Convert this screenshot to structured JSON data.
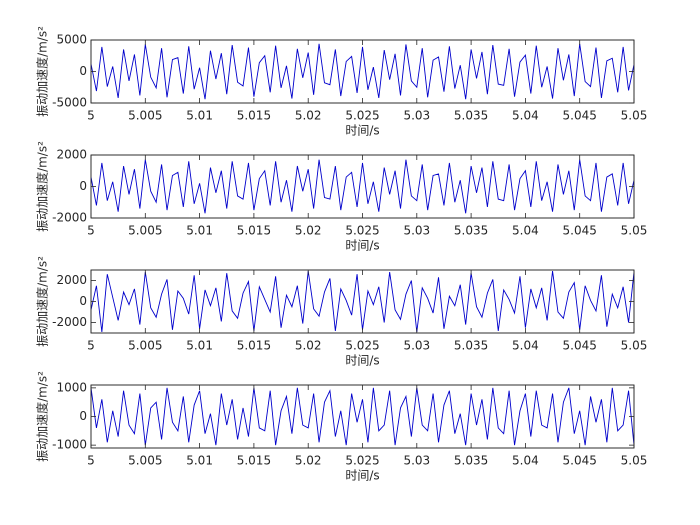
{
  "chart_data": [
    {
      "type": "line",
      "ylabel": "振动加速度/m/s²",
      "xlabel": "时间/s",
      "color": "#0000cc",
      "xlim": [
        5,
        5.05
      ],
      "xticks": [
        5,
        5.005,
        5.01,
        5.015,
        5.02,
        5.025,
        5.03,
        5.035,
        5.04,
        5.045,
        5.05
      ],
      "ylim": [
        -5000,
        5000
      ],
      "yticks": [
        -5000,
        0,
        5000
      ],
      "x": [
        5,
        5.0005,
        5.001,
        5.0015,
        5.002,
        5.0025,
        5.003,
        5.0035,
        5.004,
        5.0045,
        5.005,
        5.0055,
        5.006,
        5.0065,
        5.007,
        5.0075,
        5.008,
        5.0085,
        5.009,
        5.0095,
        5.01,
        5.0105,
        5.011,
        5.0115,
        5.012,
        5.0125,
        5.013,
        5.0135,
        5.014,
        5.0145,
        5.015,
        5.0155,
        5.016,
        5.0165,
        5.017,
        5.0175,
        5.018,
        5.0185,
        5.019,
        5.0195,
        5.02,
        5.0205,
        5.021,
        5.0215,
        5.022,
        5.0225,
        5.023,
        5.0235,
        5.024,
        5.0245,
        5.025,
        5.0255,
        5.026,
        5.0265,
        5.027,
        5.0275,
        5.028,
        5.0285,
        5.029,
        5.0295,
        5.03,
        5.0305,
        5.031,
        5.0315,
        5.032,
        5.0325,
        5.033,
        5.0335,
        5.034,
        5.0345,
        5.035,
        5.0355,
        5.036,
        5.0365,
        5.037,
        5.0375,
        5.038,
        5.0385,
        5.039,
        5.0395,
        5.04,
        5.0405,
        5.041,
        5.0415,
        5.042,
        5.0425,
        5.043,
        5.0435,
        5.044,
        5.0445,
        5.045,
        5.0455,
        5.046,
        5.0465,
        5.047,
        5.0475,
        5.048,
        5.0485,
        5.049,
        5.0495,
        5.05
      ],
      "values": [
        1200,
        -3100,
        3900,
        -2400,
        800,
        -4200,
        3500,
        -1500,
        2700,
        -3800,
        4300,
        -900,
        -2600,
        3700,
        -4100,
        1900,
        2200,
        -3500,
        4000,
        -2800,
        600,
        -4400,
        3300,
        -1200,
        2900,
        -3600,
        4200,
        -1700,
        -2300,
        3800,
        -4000,
        1400,
        2500,
        -3300,
        4100,
        -2600,
        900,
        -4300,
        3600,
        -1000,
        3000,
        -3700,
        4400,
        -1800,
        -2100,
        3500,
        -3900,
        1600,
        2400,
        -3400,
        3900,
        -2900,
        700,
        -4200,
        3400,
        -1300,
        2800,
        -3800,
        4300,
        -1500,
        -2500,
        3700,
        -4100,
        1800,
        2300,
        -3200,
        4000,
        -2700,
        1000,
        -4400,
        3500,
        -1100,
        3100,
        -3600,
        4200,
        -2000,
        -2200,
        3600,
        -4000,
        1500,
        2600,
        -3500,
        4100,
        -2500,
        800,
        -4300,
        3700,
        -1400,
        2700,
        -3900,
        4400,
        -1600,
        -2400,
        3800,
        -4200,
        1700,
        2100,
        -3300,
        3900,
        -3000,
        1100
      ]
    },
    {
      "type": "line",
      "ylabel": "振动加速度/m/s²",
      "xlabel": "时间/s",
      "color": "#0000cc",
      "xlim": [
        5,
        5.05
      ],
      "xticks": [
        5,
        5.005,
        5.01,
        5.015,
        5.02,
        5.025,
        5.03,
        5.035,
        5.04,
        5.045,
        5.05
      ],
      "ylim": [
        -2000,
        2000
      ],
      "yticks": [
        -2000,
        0,
        2000
      ],
      "x": [
        5,
        5.0005,
        5.001,
        5.0015,
        5.002,
        5.0025,
        5.003,
        5.0035,
        5.004,
        5.0045,
        5.005,
        5.0055,
        5.006,
        5.0065,
        5.007,
        5.0075,
        5.008,
        5.0085,
        5.009,
        5.0095,
        5.01,
        5.0105,
        5.011,
        5.0115,
        5.012,
        5.0125,
        5.013,
        5.0135,
        5.014,
        5.0145,
        5.015,
        5.0155,
        5.016,
        5.0165,
        5.017,
        5.0175,
        5.018,
        5.0185,
        5.019,
        5.0195,
        5.02,
        5.0205,
        5.021,
        5.0215,
        5.022,
        5.0225,
        5.023,
        5.0235,
        5.024,
        5.0245,
        5.025,
        5.0255,
        5.026,
        5.0265,
        5.027,
        5.0275,
        5.028,
        5.0285,
        5.029,
        5.0295,
        5.03,
        5.0305,
        5.031,
        5.0315,
        5.032,
        5.0325,
        5.033,
        5.0335,
        5.034,
        5.0345,
        5.035,
        5.0355,
        5.036,
        5.0365,
        5.037,
        5.0375,
        5.038,
        5.0385,
        5.039,
        5.0395,
        5.04,
        5.0405,
        5.041,
        5.0415,
        5.042,
        5.0425,
        5.043,
        5.0435,
        5.044,
        5.0445,
        5.045,
        5.0455,
        5.046,
        5.0465,
        5.047,
        5.0475,
        5.048,
        5.0485,
        5.049,
        5.0495,
        5.05
      ],
      "values": [
        600,
        -1200,
        1500,
        -900,
        300,
        -1600,
        1300,
        -500,
        1100,
        -1400,
        1700,
        -300,
        -1000,
        1400,
        -1500,
        700,
        900,
        -1300,
        1600,
        -1100,
        200,
        -1700,
        1200,
        -400,
        1000,
        -1400,
        1600,
        -600,
        -800,
        1500,
        -1500,
        500,
        1000,
        -1200,
        1600,
        -1000,
        400,
        -1600,
        1300,
        -300,
        1100,
        -1400,
        1700,
        -700,
        -800,
        1300,
        -1500,
        600,
        900,
        -1300,
        1500,
        -1100,
        300,
        -1600,
        1200,
        -500,
        1000,
        -1400,
        1700,
        -600,
        -900,
        1400,
        -1500,
        700,
        800,
        -1200,
        1500,
        -1000,
        400,
        -1700,
        1300,
        -400,
        1200,
        -1300,
        1600,
        -800,
        -900,
        1400,
        -1500,
        500,
        1000,
        -1300,
        1600,
        -900,
        300,
        -1600,
        1400,
        -500,
        1000,
        -1500,
        1700,
        -600,
        -900,
        1500,
        -1600,
        600,
        800,
        -1200,
        1500,
        -1100,
        400
      ]
    },
    {
      "type": "line",
      "ylabel": "振动加速度/m/s²",
      "xlabel": "时间/s",
      "color": "#0000cc",
      "xlim": [
        5,
        5.05
      ],
      "xticks": [
        5,
        5.005,
        5.01,
        5.015,
        5.02,
        5.025,
        5.03,
        5.035,
        5.04,
        5.045,
        5.05
      ],
      "ylim": [
        -3000,
        3000
      ],
      "yticks": [
        -2000,
        0,
        2000
      ],
      "x": [
        5,
        5.0005,
        5.001,
        5.0015,
        5.002,
        5.0025,
        5.003,
        5.0035,
        5.004,
        5.0045,
        5.005,
        5.0055,
        5.006,
        5.0065,
        5.007,
        5.0075,
        5.008,
        5.0085,
        5.009,
        5.0095,
        5.01,
        5.0105,
        5.011,
        5.0115,
        5.012,
        5.0125,
        5.013,
        5.0135,
        5.014,
        5.0145,
        5.015,
        5.0155,
        5.016,
        5.0165,
        5.017,
        5.0175,
        5.018,
        5.0185,
        5.019,
        5.0195,
        5.02,
        5.0205,
        5.021,
        5.0215,
        5.022,
        5.0225,
        5.023,
        5.0235,
        5.024,
        5.0245,
        5.025,
        5.0255,
        5.026,
        5.0265,
        5.027,
        5.0275,
        5.028,
        5.0285,
        5.029,
        5.0295,
        5.03,
        5.0305,
        5.031,
        5.0315,
        5.032,
        5.0325,
        5.033,
        5.0335,
        5.034,
        5.0345,
        5.035,
        5.0355,
        5.036,
        5.0365,
        5.037,
        5.0375,
        5.038,
        5.0385,
        5.039,
        5.0395,
        5.04,
        5.0405,
        5.041,
        5.0415,
        5.042,
        5.0425,
        5.043,
        5.0435,
        5.044,
        5.0445,
        5.045,
        5.0455,
        5.046,
        5.0465,
        5.047,
        5.0475,
        5.048,
        5.0485,
        5.049,
        5.0495,
        5.05
      ],
      "values": [
        -800,
        1500,
        -2900,
        2600,
        400,
        -1800,
        900,
        -300,
        1200,
        -2200,
        2800,
        -600,
        -1500,
        700,
        2100,
        -2700,
        1000,
        300,
        -1200,
        2500,
        -2600,
        1100,
        -400,
        1300,
        -1900,
        2700,
        -900,
        -1600,
        800,
        1900,
        -2800,
        1400,
        200,
        -1000,
        2400,
        -2500,
        600,
        -500,
        1500,
        -2100,
        2900,
        -700,
        -1400,
        900,
        2200,
        -2800,
        1200,
        100,
        -1300,
        2600,
        -2700,
        1000,
        -300,
        1400,
        -2000,
        2800,
        -800,
        -1700,
        700,
        2000,
        -2900,
        1300,
        300,
        -1100,
        2300,
        -2600,
        500,
        -400,
        1600,
        -2200,
        2700,
        -500,
        -1500,
        800,
        2100,
        -2800,
        1100,
        200,
        -1100,
        2400,
        -2500,
        1200,
        -600,
        1300,
        -1800,
        2900,
        -1000,
        -1600,
        900,
        1800,
        -2700,
        1500,
        100,
        -900,
        2500,
        -2400,
        700,
        -600,
        1400,
        -2000,
        2800
      ]
    },
    {
      "type": "line",
      "ylabel": "振动加速度/m/s²",
      "xlabel": "时间/s",
      "color": "#0000cc",
      "xlim": [
        5,
        5.05
      ],
      "xticks": [
        5,
        5.005,
        5.01,
        5.015,
        5.02,
        5.025,
        5.03,
        5.035,
        5.04,
        5.045,
        5.05
      ],
      "ylim": [
        -1100,
        1100
      ],
      "yticks": [
        -1000,
        0,
        1000
      ],
      "x": [
        5,
        5.0005,
        5.001,
        5.0015,
        5.002,
        5.0025,
        5.003,
        5.0035,
        5.004,
        5.0045,
        5.005,
        5.0055,
        5.006,
        5.0065,
        5.007,
        5.0075,
        5.008,
        5.0085,
        5.009,
        5.0095,
        5.01,
        5.0105,
        5.011,
        5.0115,
        5.012,
        5.0125,
        5.013,
        5.0135,
        5.014,
        5.0145,
        5.015,
        5.0155,
        5.016,
        5.0165,
        5.017,
        5.0175,
        5.018,
        5.0185,
        5.019,
        5.0195,
        5.02,
        5.0205,
        5.021,
        5.0215,
        5.022,
        5.0225,
        5.023,
        5.0235,
        5.024,
        5.0245,
        5.025,
        5.0255,
        5.026,
        5.0265,
        5.027,
        5.0275,
        5.028,
        5.0285,
        5.029,
        5.0295,
        5.03,
        5.0305,
        5.031,
        5.0315,
        5.032,
        5.0325,
        5.033,
        5.0335,
        5.034,
        5.0345,
        5.035,
        5.0355,
        5.036,
        5.0365,
        5.037,
        5.0375,
        5.038,
        5.0385,
        5.039,
        5.0395,
        5.04,
        5.0405,
        5.041,
        5.0415,
        5.042,
        5.0425,
        5.043,
        5.0435,
        5.044,
        5.0445,
        5.045,
        5.0455,
        5.046,
        5.0465,
        5.047,
        5.0475,
        5.048,
        5.0485,
        5.049,
        5.0495,
        5.05
      ],
      "values": [
        1000,
        -400,
        600,
        -900,
        200,
        -700,
        900,
        -300,
        -600,
        800,
        -1000,
        300,
        500,
        -800,
        1000,
        -200,
        -500,
        700,
        -900,
        400,
        900,
        -600,
        100,
        -1000,
        800,
        -300,
        600,
        -800,
        300,
        -700,
        1000,
        -400,
        -500,
        900,
        -1000,
        200,
        700,
        -600,
        1000,
        -300,
        -400,
        800,
        -900,
        500,
        900,
        -700,
        200,
        -1000,
        800,
        -200,
        600,
        -900,
        1000,
        -500,
        -300,
        900,
        -1000,
        300,
        700,
        -700,
        1000,
        -300,
        -500,
        800,
        -900,
        400,
        900,
        -600,
        100,
        -1000,
        800,
        -300,
        600,
        -800,
        1000,
        -400,
        -600,
        900,
        -1000,
        200,
        800,
        -700,
        900,
        -300,
        -400,
        800,
        -900,
        500,
        1000,
        -600,
        200,
        -1000,
        700,
        -200,
        600,
        -900,
        1000,
        -500,
        -300,
        900,
        -1000
      ]
    }
  ]
}
